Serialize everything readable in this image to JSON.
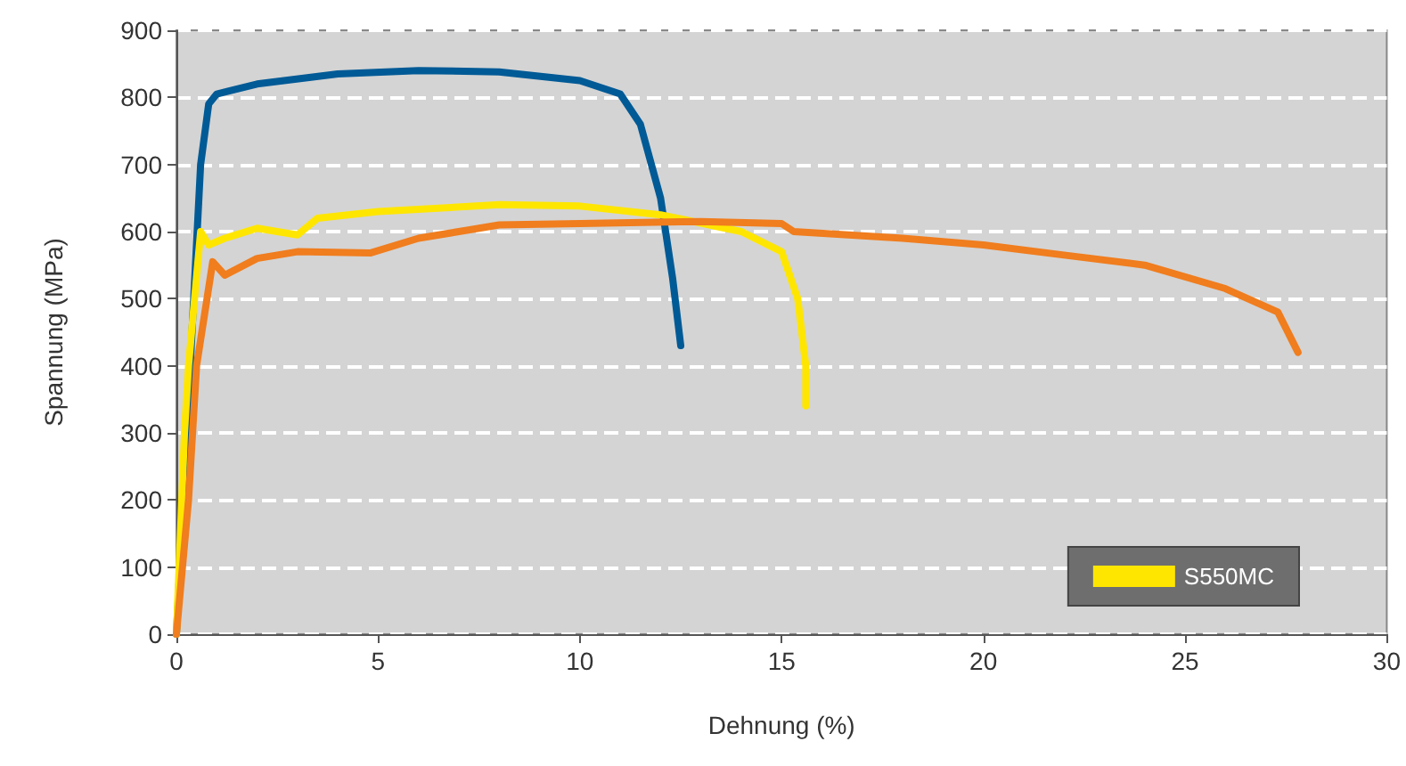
{
  "chart_data": {
    "type": "line",
    "xlabel": "Dehnung (%)",
    "ylabel": "Spannung (MPa)",
    "xlim": [
      0,
      30
    ],
    "xticks": [
      0,
      5,
      10,
      15,
      20,
      25,
      30
    ],
    "ylim": [
      0,
      900
    ],
    "yticks": [
      0,
      100,
      200,
      300,
      400,
      500,
      600,
      700,
      800,
      900
    ],
    "grid": "y",
    "legend": "bottom right",
    "marker": "none",
    "line_style": "solid",
    "series": [
      {
        "color": "#005a96",
        "x": [
          0,
          0.6,
          0.8,
          1.0,
          2,
          4,
          6,
          8,
          10,
          11,
          11.5,
          12,
          12.3,
          12.5
        ],
        "values": [
          0,
          700,
          790,
          805,
          820,
          835,
          840,
          838,
          825,
          805,
          760,
          650,
          530,
          430
        ]
      },
      {
        "name": "S550MC",
        "color": "#ffe600",
        "x": [
          0,
          0.2,
          0.3,
          0.6,
          0.8,
          1.2,
          2,
          3,
          3.5,
          5,
          8,
          10,
          12,
          14,
          15,
          15.4,
          15.6,
          15.6
        ],
        "values": [
          0,
          300,
          400,
          600,
          580,
          590,
          605,
          595,
          620,
          630,
          640,
          638,
          625,
          600,
          570,
          500,
          400,
          340
        ]
      },
      {
        "color": "#f07d1e",
        "x": [
          0,
          0.3,
          0.5,
          0.9,
          1.2,
          2,
          3,
          4.8,
          6,
          8,
          10,
          13,
          15,
          15.3,
          18,
          20,
          22,
          24,
          26,
          27.3,
          27.8
        ],
        "values": [
          0,
          200,
          400,
          555,
          535,
          560,
          570,
          568,
          590,
          610,
          612,
          615,
          612,
          600,
          590,
          580,
          565,
          550,
          515,
          480,
          420
        ]
      }
    ]
  }
}
